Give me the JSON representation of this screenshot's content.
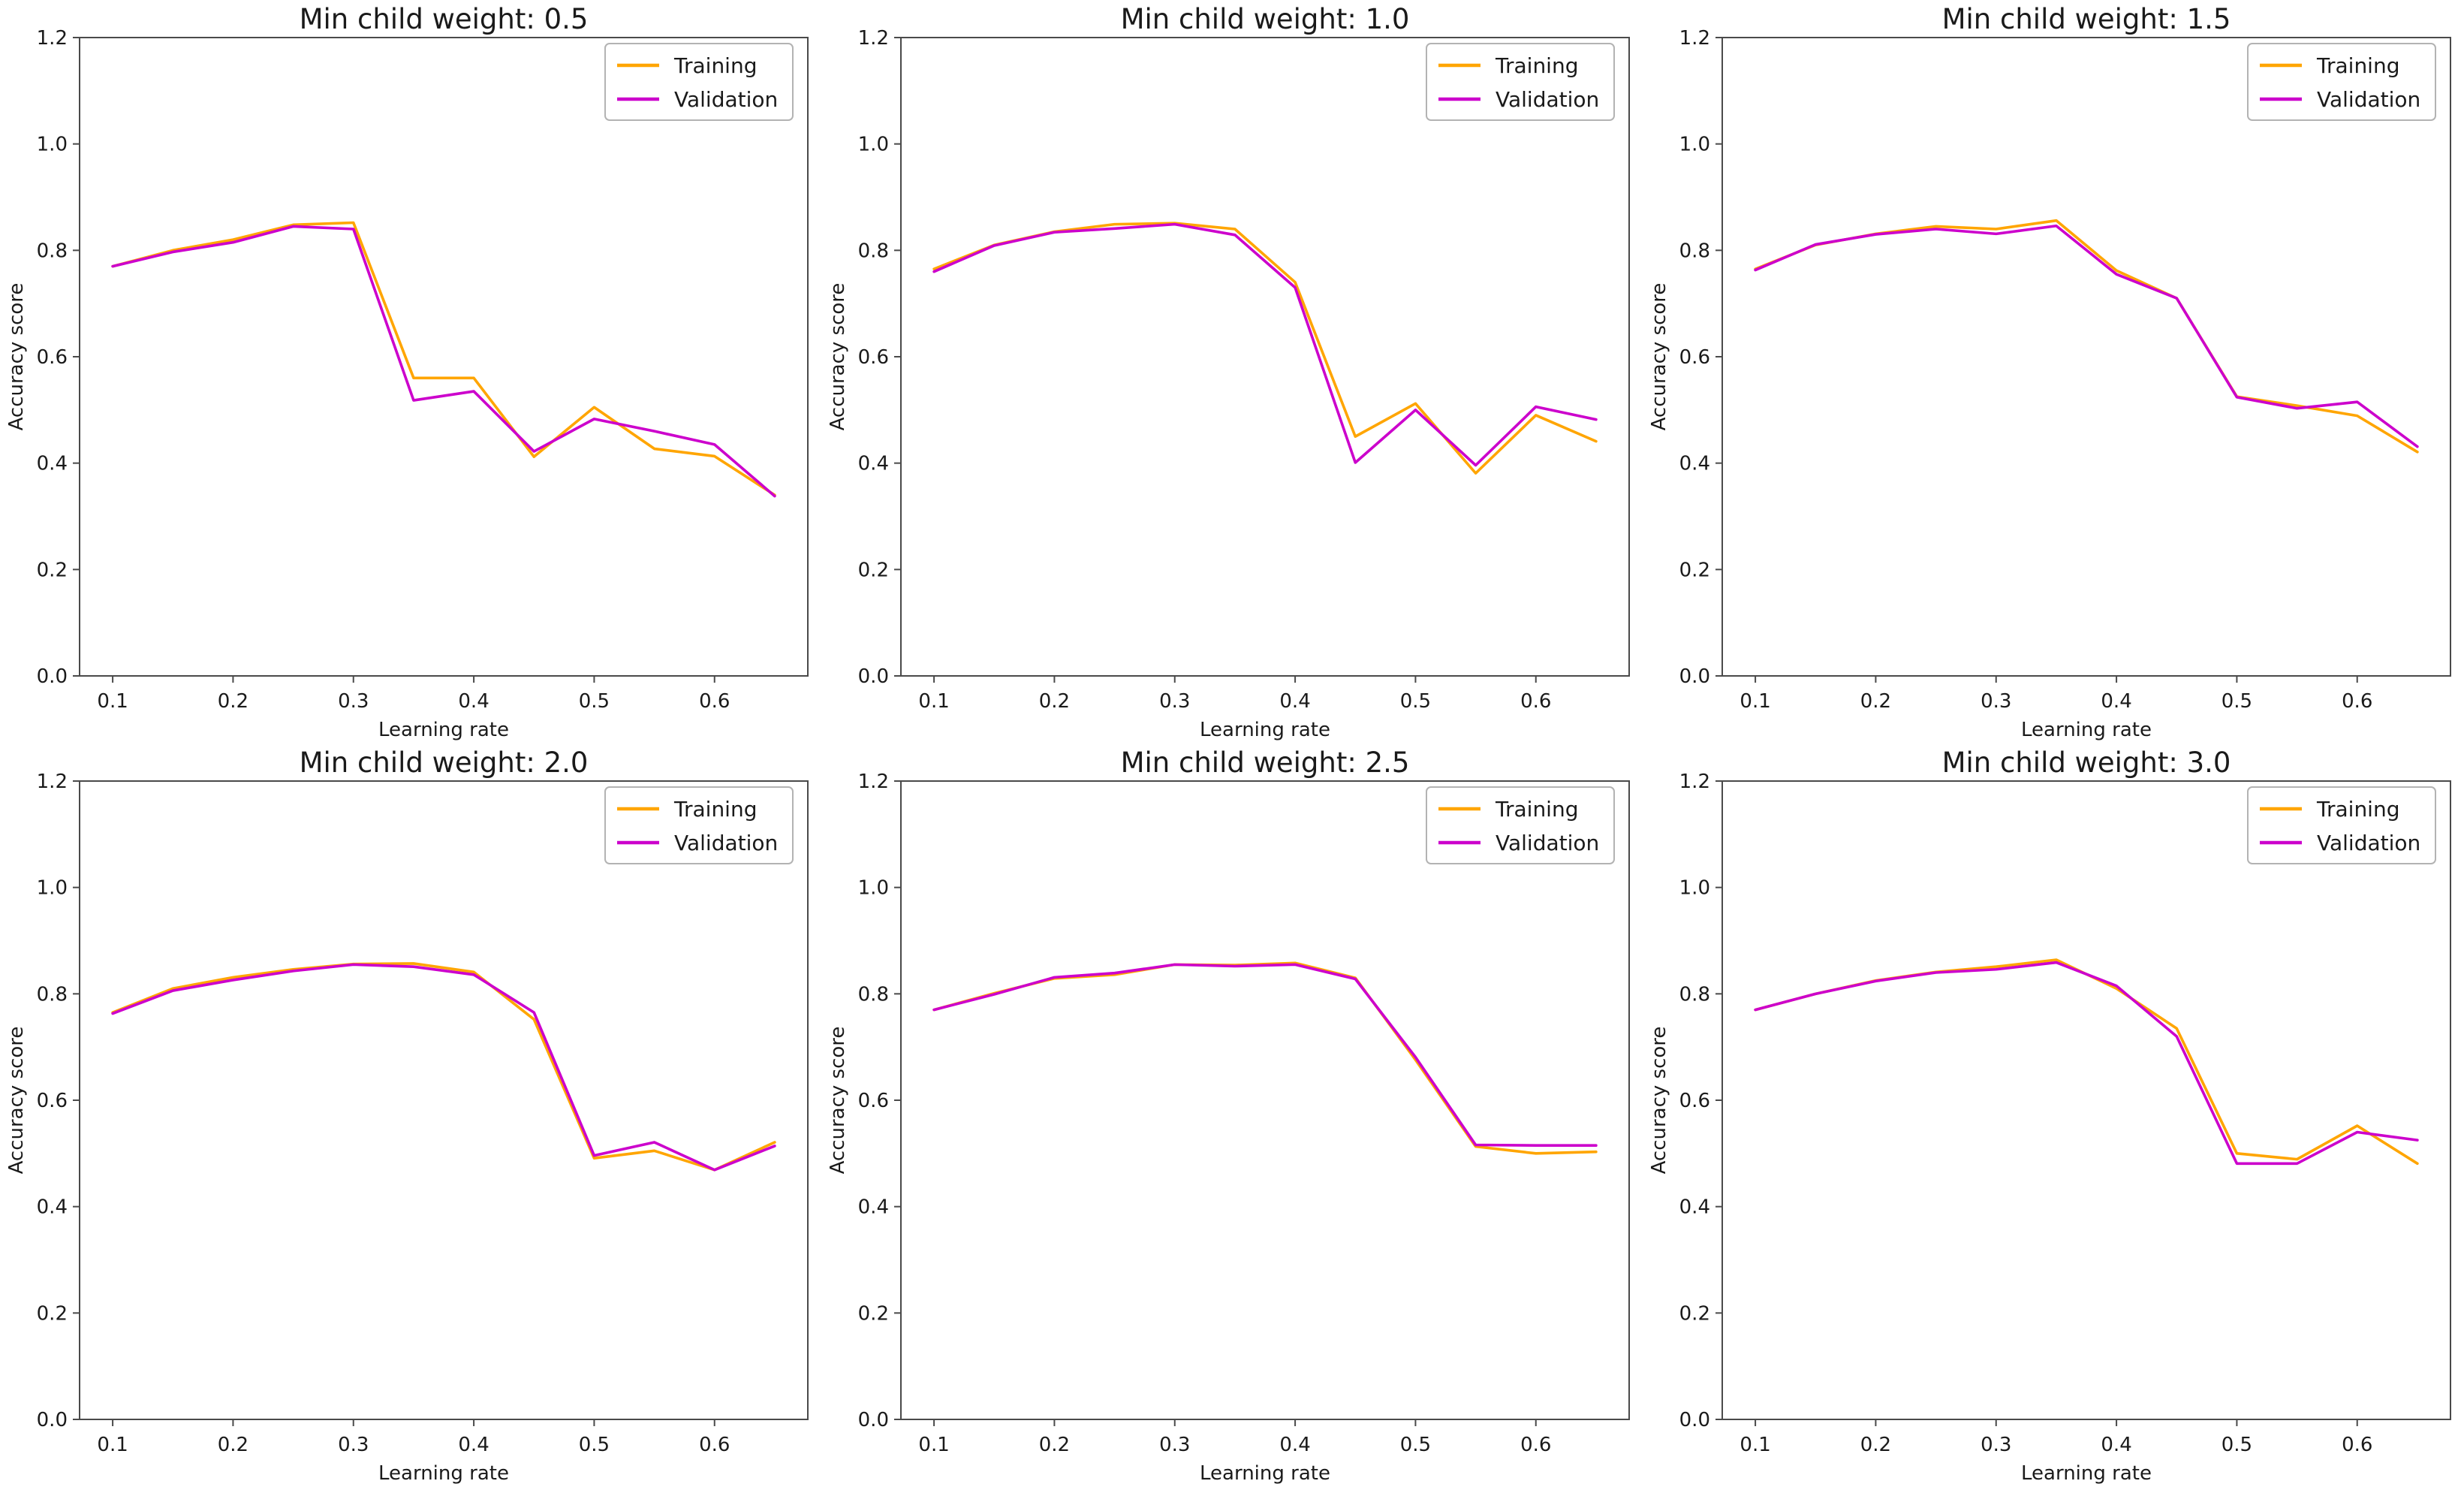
{
  "figure": {
    "background": "#ffffff",
    "rows": 2,
    "cols": 3
  },
  "colors": {
    "training": "#FFA500",
    "validation": "#CC00CC",
    "text": "#1a1a1a",
    "spine": "#4a4a4a",
    "legend_border": "#b3b3b3",
    "legend_fill": "#ffffff"
  },
  "chart_data": [
    {
      "type": "line",
      "title": "Min child weight: 0.5",
      "xlabel": "Learning rate",
      "ylabel": "Accuracy score",
      "ylim": [
        0.0,
        1.2
      ],
      "xticks": [
        0.1,
        0.2,
        0.3,
        0.4,
        0.5,
        0.6
      ],
      "yticks": [
        0.0,
        0.2,
        0.4,
        0.6,
        0.8,
        1.0,
        1.2
      ],
      "grid": false,
      "legend_position": "top-right",
      "x": [
        0.1,
        0.15,
        0.2,
        0.25,
        0.3,
        0.35,
        0.4,
        0.45,
        0.5,
        0.55,
        0.6,
        0.65
      ],
      "series": [
        {
          "name": "Training",
          "values": [
            0.77,
            0.8,
            0.82,
            0.848,
            0.852,
            0.56,
            0.56,
            0.412,
            0.505,
            0.427,
            0.413,
            0.34
          ]
        },
        {
          "name": "Validation",
          "values": [
            0.77,
            0.797,
            0.815,
            0.845,
            0.84,
            0.518,
            0.535,
            0.422,
            0.483,
            0.46,
            0.435,
            0.338
          ]
        }
      ]
    },
    {
      "type": "line",
      "title": "Min child weight: 1.0",
      "xlabel": "Learning rate",
      "ylabel": "Accuracy score",
      "ylim": [
        0.0,
        1.2
      ],
      "xticks": [
        0.1,
        0.2,
        0.3,
        0.4,
        0.5,
        0.6
      ],
      "yticks": [
        0.0,
        0.2,
        0.4,
        0.6,
        0.8,
        1.0,
        1.2
      ],
      "grid": false,
      "legend_position": "top-right",
      "x": [
        0.1,
        0.15,
        0.2,
        0.25,
        0.3,
        0.35,
        0.4,
        0.45,
        0.5,
        0.55,
        0.6,
        0.65
      ],
      "series": [
        {
          "name": "Training",
          "values": [
            0.765,
            0.81,
            0.835,
            0.849,
            0.851,
            0.84,
            0.74,
            0.45,
            0.512,
            0.381,
            0.49,
            0.441
          ]
        },
        {
          "name": "Validation",
          "values": [
            0.76,
            0.809,
            0.834,
            0.841,
            0.849,
            0.829,
            0.73,
            0.401,
            0.5,
            0.396,
            0.506,
            0.482
          ]
        }
      ]
    },
    {
      "type": "line",
      "title": "Min child weight: 1.5",
      "xlabel": "Learning rate",
      "ylabel": "Accuracy score",
      "ylim": [
        0.0,
        1.2
      ],
      "xticks": [
        0.1,
        0.2,
        0.3,
        0.4,
        0.5,
        0.6
      ],
      "yticks": [
        0.0,
        0.2,
        0.4,
        0.6,
        0.8,
        1.0,
        1.2
      ],
      "grid": false,
      "legend_position": "top-right",
      "x": [
        0.1,
        0.15,
        0.2,
        0.25,
        0.3,
        0.35,
        0.4,
        0.45,
        0.5,
        0.55,
        0.6,
        0.65
      ],
      "series": [
        {
          "name": "Training",
          "values": [
            0.765,
            0.81,
            0.831,
            0.845,
            0.84,
            0.856,
            0.762,
            0.71,
            0.525,
            0.508,
            0.489,
            0.421
          ]
        },
        {
          "name": "Validation",
          "values": [
            0.763,
            0.811,
            0.83,
            0.84,
            0.831,
            0.846,
            0.755,
            0.71,
            0.524,
            0.503,
            0.515,
            0.431
          ]
        }
      ]
    },
    {
      "type": "line",
      "title": "Min child weight: 2.0",
      "xlabel": "Learning rate",
      "ylabel": "Accuracy score",
      "ylim": [
        0.0,
        1.2
      ],
      "xticks": [
        0.1,
        0.2,
        0.3,
        0.4,
        0.5,
        0.6
      ],
      "yticks": [
        0.0,
        0.2,
        0.4,
        0.6,
        0.8,
        1.0,
        1.2
      ],
      "grid": false,
      "legend_position": "top-right",
      "x": [
        0.1,
        0.15,
        0.2,
        0.25,
        0.3,
        0.35,
        0.4,
        0.45,
        0.5,
        0.55,
        0.6,
        0.65
      ],
      "series": [
        {
          "name": "Training",
          "values": [
            0.765,
            0.81,
            0.831,
            0.846,
            0.856,
            0.857,
            0.841,
            0.752,
            0.491,
            0.505,
            0.469,
            0.521
          ]
        },
        {
          "name": "Validation",
          "values": [
            0.763,
            0.806,
            0.826,
            0.843,
            0.855,
            0.851,
            0.836,
            0.765,
            0.496,
            0.521,
            0.469,
            0.514
          ]
        }
      ]
    },
    {
      "type": "line",
      "title": "Min child weight: 2.5",
      "xlabel": "Learning rate",
      "ylabel": "Accuracy score",
      "ylim": [
        0.0,
        1.2
      ],
      "xticks": [
        0.1,
        0.2,
        0.3,
        0.4,
        0.5,
        0.6
      ],
      "yticks": [
        0.0,
        0.2,
        0.4,
        0.6,
        0.8,
        1.0,
        1.2
      ],
      "grid": false,
      "legend_position": "top-right",
      "x": [
        0.1,
        0.15,
        0.2,
        0.25,
        0.3,
        0.35,
        0.4,
        0.45,
        0.5,
        0.55,
        0.6,
        0.65
      ],
      "series": [
        {
          "name": "Training",
          "values": [
            0.77,
            0.801,
            0.829,
            0.836,
            0.855,
            0.854,
            0.858,
            0.83,
            0.676,
            0.513,
            0.5,
            0.503
          ]
        },
        {
          "name": "Validation",
          "values": [
            0.77,
            0.799,
            0.831,
            0.839,
            0.855,
            0.852,
            0.855,
            0.828,
            0.681,
            0.516,
            0.515,
            0.515
          ]
        }
      ]
    },
    {
      "type": "line",
      "title": "Min child weight: 3.0",
      "xlabel": "Learning rate",
      "ylabel": "Accuracy score",
      "ylim": [
        0.0,
        1.2
      ],
      "xticks": [
        0.1,
        0.2,
        0.3,
        0.4,
        0.5,
        0.6
      ],
      "yticks": [
        0.0,
        0.2,
        0.4,
        0.6,
        0.8,
        1.0,
        1.2
      ],
      "grid": false,
      "legend_position": "top-right",
      "x": [
        0.1,
        0.15,
        0.2,
        0.25,
        0.3,
        0.35,
        0.4,
        0.45,
        0.5,
        0.55,
        0.6,
        0.65
      ],
      "series": [
        {
          "name": "Training",
          "values": [
            0.77,
            0.8,
            0.825,
            0.841,
            0.851,
            0.864,
            0.81,
            0.735,
            0.5,
            0.489,
            0.552,
            0.481
          ]
        },
        {
          "name": "Validation",
          "values": [
            0.77,
            0.8,
            0.824,
            0.84,
            0.846,
            0.859,
            0.815,
            0.72,
            0.481,
            0.481,
            0.54,
            0.525
          ]
        }
      ]
    }
  ]
}
